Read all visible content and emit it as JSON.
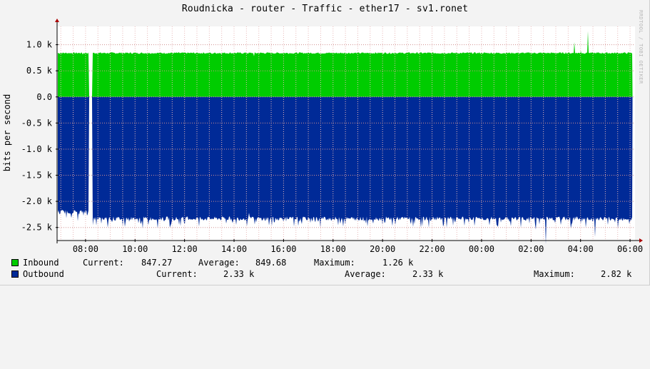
{
  "title": "Roudnicka - router - Traffic - ether17 - sv1.ronet",
  "watermark": "RRDTOOL / TOBI OETIKER",
  "colors": {
    "inbound": "#00cc00",
    "outbound": "#002a97",
    "grid_minor": "#e8b8b8",
    "grid_major": "#d09090",
    "canvas": "#ffffff",
    "axis": "#000000",
    "arrow": "#aa0000"
  },
  "chart_data": {
    "type": "area",
    "title": "Roudnicka - router - Traffic - ether17 - sv1.ronet",
    "ylabel": "bits per second",
    "xlabel": "",
    "grid": true,
    "ylim": [
      -2.75,
      1.35
    ],
    "y_unit": "k bits per second",
    "y_ticks": [
      1.0,
      0.5,
      0.0,
      -0.5,
      -1.0,
      -1.5,
      -2.0,
      -2.5
    ],
    "y_tick_labels": [
      "1.0 k",
      "0.5 k",
      "0.0",
      "-0.5 k",
      "-1.0 k",
      "-1.5 k",
      "-2.0 k",
      "-2.5 k"
    ],
    "x_range_hours": [
      6.85,
      30.2
    ],
    "x_ticks_hours": [
      8,
      10,
      12,
      14,
      16,
      18,
      20,
      22,
      24,
      26,
      28,
      30
    ],
    "x_tick_labels": [
      "08:00",
      "10:00",
      "12:00",
      "14:00",
      "16:00",
      "18:00",
      "20:00",
      "22:00",
      "00:00",
      "02:00",
      "04:00",
      "06:00"
    ],
    "series": [
      {
        "name": "Inbound",
        "sign": 1,
        "baseline": 0.84,
        "x": [
          7.9,
          8.2,
          8.25,
          13.1,
          14.8,
          20.5,
          27.4,
          27.75,
          28.0,
          28.3,
          28.7
        ],
        "values": [
          0.81,
          0.0,
          0.9,
          0.82,
          0.78,
          0.85,
          0.86,
          1.05,
          0.88,
          1.26,
          0.85
        ]
      },
      {
        "name": "Outbound",
        "sign": -1,
        "baseline": -2.33,
        "x": [
          7.0,
          7.5,
          7.9,
          8.2,
          8.25,
          8.9,
          9.5,
          10.3,
          11.4,
          12.6,
          14.1,
          14.6,
          14.9,
          15.4,
          16.6,
          17.5,
          18.4,
          19.4,
          20.4,
          21.6,
          22.6,
          23.7,
          24.6,
          25.6,
          26.2,
          26.6,
          27.2,
          27.6,
          28.2,
          28.6,
          29.1,
          29.5
        ],
        "values": [
          -2.19,
          -2.21,
          -2.18,
          0.0,
          -2.32,
          -2.5,
          -2.47,
          -2.52,
          -2.5,
          -2.48,
          -2.45,
          -2.22,
          -2.4,
          -2.46,
          -2.47,
          -2.5,
          -2.48,
          -2.48,
          -2.47,
          -2.48,
          -2.5,
          -2.47,
          -2.45,
          -2.5,
          -2.54,
          -2.82,
          -2.45,
          -2.52,
          -2.5,
          -2.68,
          -2.45,
          -2.52
        ]
      }
    ]
  },
  "legend": [
    {
      "name": "Inbound",
      "current_label": "Current:",
      "current": "847.27",
      "average_label": "Average:",
      "average": "849.68",
      "maximum_label": "Maximum:",
      "maximum": "1.26 k"
    },
    {
      "name": "Outbound",
      "current_label": "Current:",
      "current": "2.33 k",
      "average_label": "Average:",
      "average": "2.33 k",
      "maximum_label": "Maximum:",
      "maximum": "2.82 k"
    }
  ]
}
